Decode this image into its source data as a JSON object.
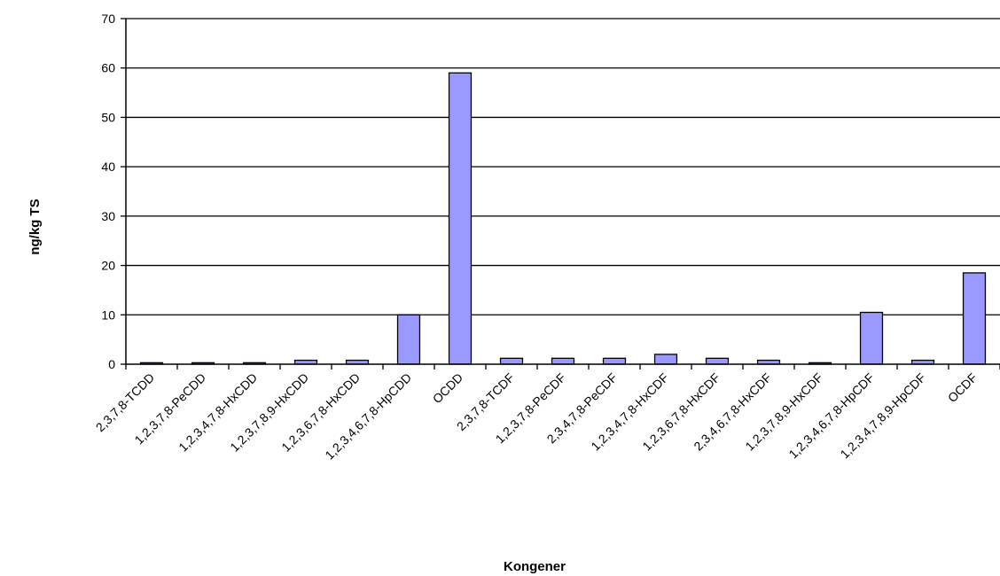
{
  "chart_data": {
    "type": "bar",
    "title": "",
    "xlabel": "Kongener",
    "ylabel": "ng/kg TS",
    "ylim": [
      0,
      70
    ],
    "yticks": [
      0,
      10,
      20,
      30,
      40,
      50,
      60,
      70
    ],
    "grid": "horizontal",
    "legend": "none",
    "bar_color": "#9999ff",
    "bar_border_color": "#000000",
    "categories": [
      "2,3,7,8-TCDD",
      "1,2,3,7,8-PeCDD",
      "1,2,3,4,7,8-HxCDD",
      "1,2,3,7,8,9-HxCDD",
      "1,2,3,6,7,8-HxCDD",
      "1,2,3,4,6,7,8-HpCDD",
      "OCDD",
      "2,3,7,8-TCDF",
      "1,2,3,7,8-PeCDF",
      "2,3,4,7,8-PeCDF",
      "1,2,3,4,7,8-HxCDF",
      "1,2,3,6,7,8-HxCDF",
      "2,3,4,6,7,8-HxCDF",
      "1,2,3,7,8,9-HxCDF",
      "1,2,3,4,6,7,8-HpCDF",
      "1,2,3,4,7,8,9-HpCDF",
      "OCDF"
    ],
    "values": [
      0.3,
      0.3,
      0.3,
      0.8,
      0.8,
      10.0,
      59.0,
      1.2,
      1.2,
      1.2,
      2.0,
      1.2,
      0.8,
      0.3,
      10.5,
      0.8,
      18.5
    ]
  }
}
